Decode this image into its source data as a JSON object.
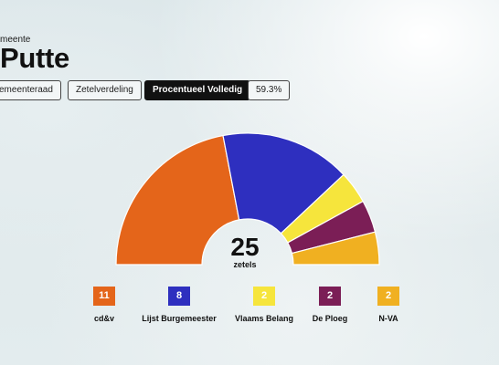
{
  "header": {
    "kicker": "meente",
    "title": "Putte"
  },
  "tabs": [
    {
      "label": "emeenteraad",
      "active": false
    },
    {
      "label": "Zetelverdeling",
      "active": false
    },
    {
      "label": "Procentueel Volledig",
      "active": true
    },
    {
      "label": "59.3%",
      "active": false
    }
  ],
  "chart_data": {
    "type": "pie",
    "subtype": "parliament-hemicycle",
    "total_seats": 25,
    "total_label": "zetels",
    "parties": [
      {
        "name": "cd&v",
        "seats": 11,
        "color": "#e4651a"
      },
      {
        "name": "Lijst Burgemeester",
        "seats": 8,
        "color": "#2e2fbf"
      },
      {
        "name": "Vlaams Belang",
        "seats": 2,
        "color": "#f6e53c"
      },
      {
        "name": "De Ploeg",
        "seats": 2,
        "color": "#7b1e56"
      },
      {
        "name": "N-VA",
        "seats": 2,
        "color": "#f0b021"
      }
    ]
  }
}
